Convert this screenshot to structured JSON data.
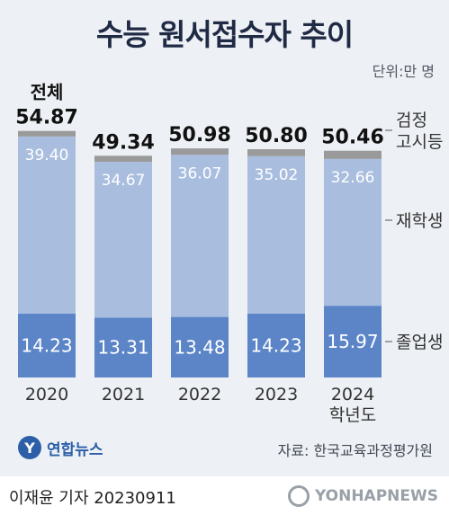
{
  "title": "수능 원서접수자 추이",
  "unit": "단위:만 명",
  "source": "자료: 한국교육과정평가원",
  "logo": "연합뉴스",
  "byline": "이재윤 기자  20230911",
  "watermark": "YONHAPNEWS",
  "colors": {
    "background": "#edf0f4",
    "grads": "#5c85c8",
    "repeaters": "#a9bedf",
    "ged": "#9a9a9a"
  },
  "chart_data": {
    "type": "bar",
    "stacked": true,
    "categories": [
      "2020",
      "2021",
      "2022",
      "2023",
      "2024"
    ],
    "x_sublabel_last": "학년도",
    "total_label": "전체",
    "totals": [
      54.87,
      49.34,
      50.98,
      50.8,
      50.46
    ],
    "series": [
      {
        "name": "졸업생",
        "values": [
          14.23,
          13.31,
          13.48,
          14.23,
          15.97
        ]
      },
      {
        "name": "재학생",
        "values": [
          39.4,
          34.67,
          36.07,
          35.02,
          32.66
        ]
      },
      {
        "name": "검정\n고시등",
        "values": [
          1.24,
          1.36,
          1.43,
          1.55,
          1.83
        ]
      }
    ],
    "legend_position": "right"
  }
}
